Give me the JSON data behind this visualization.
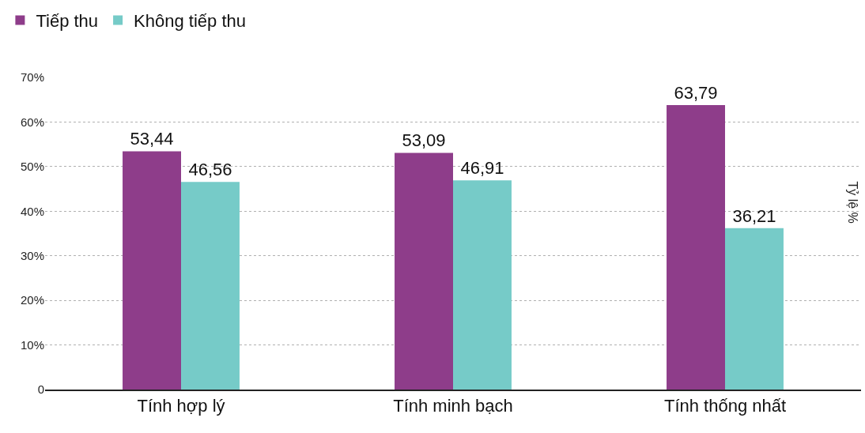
{
  "chart_data": {
    "type": "bar",
    "ylabel": "Tỷ lệ %",
    "categories": [
      "Tính hợp lý",
      "Tính minh bạch",
      "Tính thống nhất"
    ],
    "series": [
      {
        "name": "Tiếp thu",
        "color": "#8e3d8a",
        "values": [
          53.44,
          53.09,
          63.79
        ],
        "value_labels": [
          "53,44",
          "53,09",
          "63,79"
        ]
      },
      {
        "name": "Không tiếp thu",
        "color": "#76cbc8",
        "values": [
          46.56,
          46.91,
          36.21
        ],
        "value_labels": [
          "46,56",
          "46,91",
          "36,21"
        ]
      }
    ],
    "ylim": [
      0,
      70
    ],
    "yticks": [
      {
        "value": 0,
        "label": "0"
      },
      {
        "value": 10,
        "label": "10%"
      },
      {
        "value": 20,
        "label": "20%"
      },
      {
        "value": 30,
        "label": "30%"
      },
      {
        "value": 40,
        "label": "40%"
      },
      {
        "value": 50,
        "label": "50%"
      },
      {
        "value": 60,
        "label": "60%"
      },
      {
        "value": 70,
        "label": "70%"
      }
    ],
    "grid": "y",
    "legend": "top left"
  }
}
